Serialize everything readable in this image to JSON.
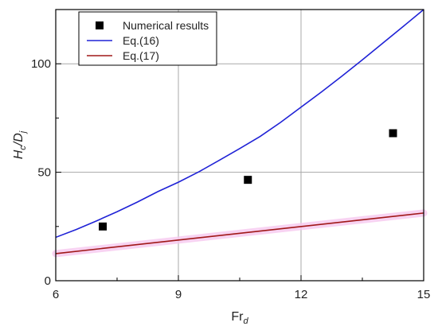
{
  "chart_data": {
    "type": "line",
    "xlabel": "Fr",
    "xlabel_sub": "d",
    "ylabel_main": "H",
    "ylabel_sub1": "c",
    "ylabel_mid": "/D",
    "ylabel_sub2": "j",
    "xlim": [
      6,
      15
    ],
    "ylim": [
      0,
      125
    ],
    "xticks": [
      6,
      9,
      12,
      15
    ],
    "yticks": [
      0,
      50,
      100
    ],
    "x_minor_step": 1.5,
    "y_minor_step": 25,
    "grid": true,
    "legend_position": "top-left",
    "series": [
      {
        "name": "Numerical results",
        "kind": "scatter",
        "marker": "square",
        "color": "#000000",
        "x": [
          7.15,
          10.7,
          14.25
        ],
        "y": [
          25,
          46.5,
          68
        ]
      },
      {
        "name": "Eq.(16)",
        "kind": "line",
        "color": "#1f22d6",
        "x": [
          6,
          6.5,
          7,
          7.5,
          8,
          8.5,
          9,
          9.5,
          10,
          10.5,
          11,
          11.5,
          12,
          12.5,
          13,
          13.5,
          14,
          14.5,
          15
        ],
        "y": [
          20,
          23.6,
          27.6,
          31.8,
          36.3,
          41.1,
          45.4,
          50.2,
          55.5,
          60.9,
          66.5,
          73.0,
          80.0,
          87.0,
          94.3,
          101.8,
          109.5,
          117.2,
          125
        ]
      },
      {
        "name": "Eq.(17)",
        "kind": "line",
        "color": "#a01818",
        "x": [
          6,
          15
        ],
        "y": [
          12.5,
          31.2
        ]
      }
    ]
  }
}
